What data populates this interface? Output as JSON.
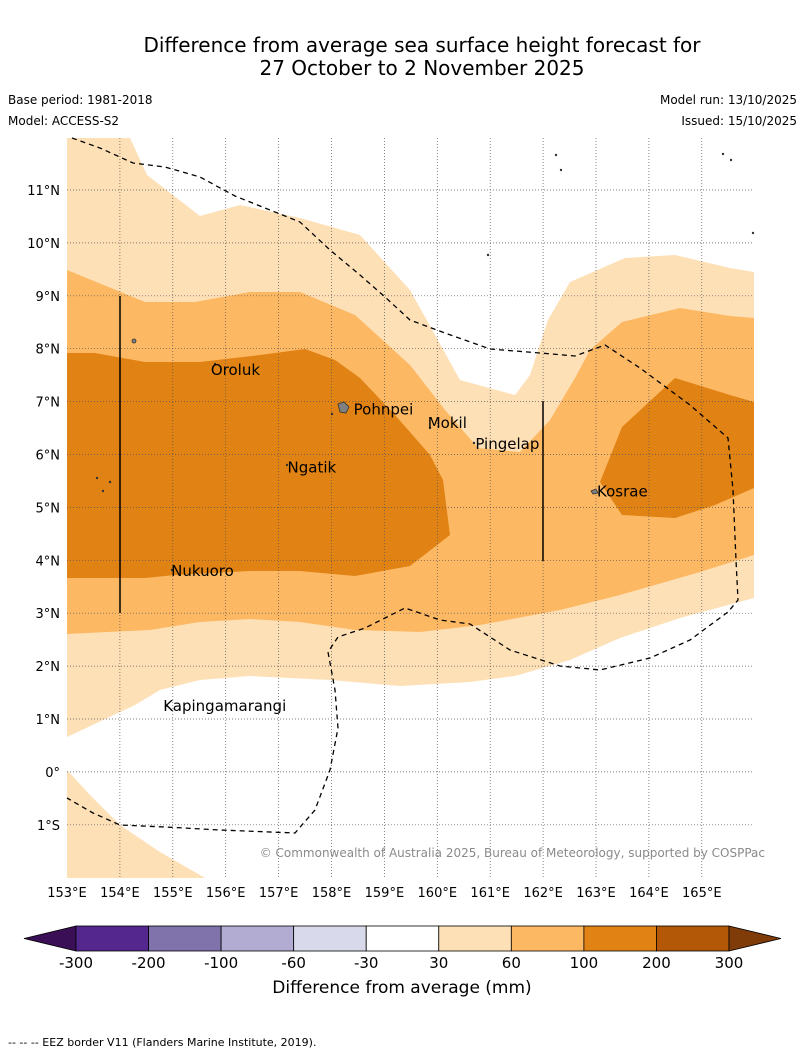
{
  "title": {
    "line1": "Difference from average sea surface height forecast for",
    "line2": "27 October to 2 November 2025"
  },
  "meta": {
    "base_period": "Base period: 1981-2018",
    "model": "Model: ACCESS-S2",
    "model_run": "Model run: 13/10/2025",
    "issued": "Issued: 15/10/2025"
  },
  "map": {
    "lon_labels": [
      "153°E",
      "154°E",
      "155°E",
      "156°E",
      "157°E",
      "158°E",
      "159°E",
      "160°E",
      "161°E",
      "162°E",
      "163°E",
      "164°E",
      "165°E"
    ],
    "lat_labels": [
      "11°N",
      "10°N",
      "9°N",
      "8°N",
      "7°N",
      "6°N",
      "5°N",
      "4°N",
      "3°N",
      "2°N",
      "1°N",
      "0°",
      "1°S"
    ],
    "places": [
      {
        "name": "Oroluk",
        "lon": 155.7,
        "lat": 7.6
      },
      {
        "name": "Pohnpei",
        "lon": 158.4,
        "lat": 6.85
      },
      {
        "name": "Mokil",
        "lon": 159.8,
        "lat": 6.6
      },
      {
        "name": "Pingelap",
        "lon": 160.7,
        "lat": 6.2
      },
      {
        "name": "Ngatik",
        "lon": 157.15,
        "lat": 5.75
      },
      {
        "name": "Kosrae",
        "lon": 163.0,
        "lat": 5.3
      },
      {
        "name": "Nukuoro",
        "lon": 154.95,
        "lat": 3.8
      },
      {
        "name": "Kapingamarangi",
        "lon": 154.8,
        "lat": 1.25
      }
    ],
    "copyright": "© Commonwealth of Australia 2025, Bureau of Meteorology, supported by COSPPac"
  },
  "colorbar": {
    "ticks": [
      "-300",
      "-200",
      "-100",
      "-60",
      "-30",
      "30",
      "60",
      "100",
      "200",
      "300"
    ],
    "colors": [
      "#3b0f55",
      "#54278f",
      "#8073ac",
      "#b2abd2",
      "#d8daeb",
      "#ffffff",
      "#fee0b6",
      "#fdb863",
      "#e08214",
      "#b35806",
      "#7f3b08"
    ],
    "label": "Difference from average (mm)"
  },
  "footer": "--  --  -- EEZ border V11 (Flanders Marine Institute, 2019)."
}
